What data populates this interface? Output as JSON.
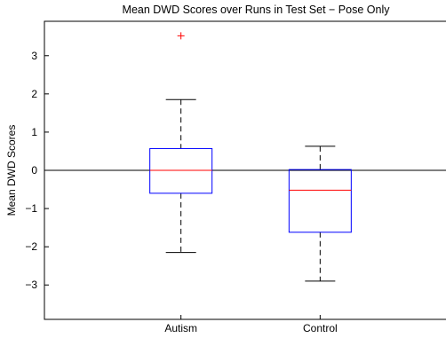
{
  "chart_data": {
    "type": "box",
    "title": "Mean DWD Scores over Runs in Test Set − Pose Only",
    "xlabel": "",
    "ylabel": "Mean DWD Scores",
    "ylim": [
      -3.9,
      3.9
    ],
    "yticks": [
      3,
      2,
      1,
      0,
      -1,
      -2,
      -3
    ],
    "ytick_labels": [
      "3",
      "2",
      "1",
      "0",
      "−1",
      "−2",
      "−3"
    ],
    "zero_line": 0,
    "grid": false,
    "categories": [
      "Autism",
      "Control"
    ],
    "boxes": [
      {
        "name": "Autism",
        "whisker_low": -2.15,
        "q1": -0.6,
        "median": 0.0,
        "q3": 0.57,
        "whisker_high": 1.85,
        "outliers": [
          3.52
        ]
      },
      {
        "name": "Control",
        "whisker_low": -2.9,
        "q1": -1.62,
        "median": -0.52,
        "q3": 0.02,
        "whisker_high": 0.63,
        "outliers": []
      }
    ],
    "colors": {
      "box": "#0000ff",
      "median": "#ff0000",
      "whisker": "#000000",
      "outlier": "#ff0000",
      "axis": "#000000"
    }
  }
}
